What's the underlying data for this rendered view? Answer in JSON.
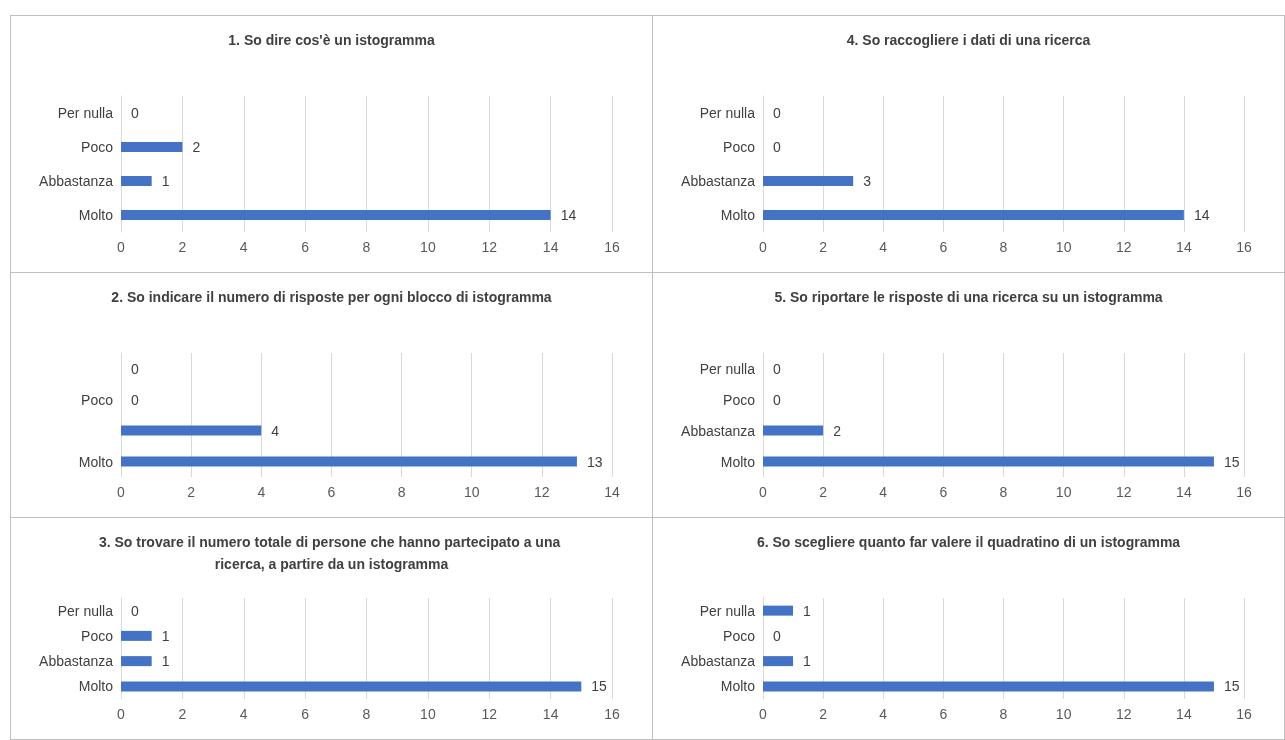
{
  "chart_data": [
    {
      "type": "bar",
      "orientation": "horizontal",
      "title": "1. So dire cos'è un istogramma",
      "categories": [
        "Per nulla",
        "Poco",
        "Abbastanza",
        "Molto"
      ],
      "values": [
        0,
        2,
        1,
        14
      ],
      "color": "#4472c4",
      "xlim": [
        0,
        16
      ],
      "xticks": [
        0,
        2,
        4,
        6,
        8,
        10,
        12,
        14,
        16
      ],
      "grid": "x",
      "data_labels": true
    },
    {
      "type": "bar",
      "orientation": "horizontal",
      "title": "2. So indicare il numero di risposte per ogni blocco di istogramma",
      "categories": [
        null,
        "Poco",
        null,
        "Molto"
      ],
      "values": [
        0,
        0,
        4,
        13
      ],
      "color": "#4472c4",
      "xlim": [
        0,
        14
      ],
      "xticks": [
        0,
        2,
        4,
        6,
        8,
        10,
        12,
        14
      ],
      "grid": "x",
      "data_labels": true
    },
    {
      "type": "bar",
      "orientation": "horizontal",
      "title": "3. So trovare il numero totale di persone che hanno partecipato a una ricerca, a partire da un istogramma",
      "categories": [
        "Per nulla",
        "Poco",
        "Abbastanza",
        "Molto"
      ],
      "values": [
        0,
        1,
        1,
        15
      ],
      "color": "#4472c4",
      "xlim": [
        0,
        16
      ],
      "xticks": [
        0,
        2,
        4,
        6,
        8,
        10,
        12,
        14,
        16
      ],
      "grid": "x",
      "data_labels": true
    },
    {
      "type": "bar",
      "orientation": "horizontal",
      "title": "4. So raccogliere i dati di una ricerca",
      "categories": [
        "Per nulla",
        "Poco",
        "Abbastanza",
        "Molto"
      ],
      "values": [
        0,
        0,
        3,
        14
      ],
      "color": "#4472c4",
      "xlim": [
        0,
        16
      ],
      "xticks": [
        0,
        2,
        4,
        6,
        8,
        10,
        12,
        14,
        16
      ],
      "grid": "x",
      "data_labels": true
    },
    {
      "type": "bar",
      "orientation": "horizontal",
      "title": "5. So riportare le risposte di una ricerca su un istogramma",
      "categories": [
        "Per nulla",
        "Poco",
        "Abbastanza",
        "Molto"
      ],
      "values": [
        0,
        0,
        2,
        15
      ],
      "color": "#4472c4",
      "xlim": [
        0,
        16
      ],
      "xticks": [
        0,
        2,
        4,
        6,
        8,
        10,
        12,
        14,
        16
      ],
      "grid": "x",
      "data_labels": true
    },
    {
      "type": "bar",
      "orientation": "horizontal",
      "title": "6. So scegliere quanto far valere il quadratino di un istogramma",
      "categories": [
        "Per nulla",
        "Poco",
        "Abbastanza",
        "Molto"
      ],
      "values": [
        1,
        0,
        1,
        15
      ],
      "color": "#4472c4",
      "xlim": [
        0,
        16
      ],
      "xticks": [
        0,
        2,
        4,
        6,
        8,
        10,
        12,
        14,
        16
      ],
      "grid": "x",
      "data_labels": true
    }
  ]
}
